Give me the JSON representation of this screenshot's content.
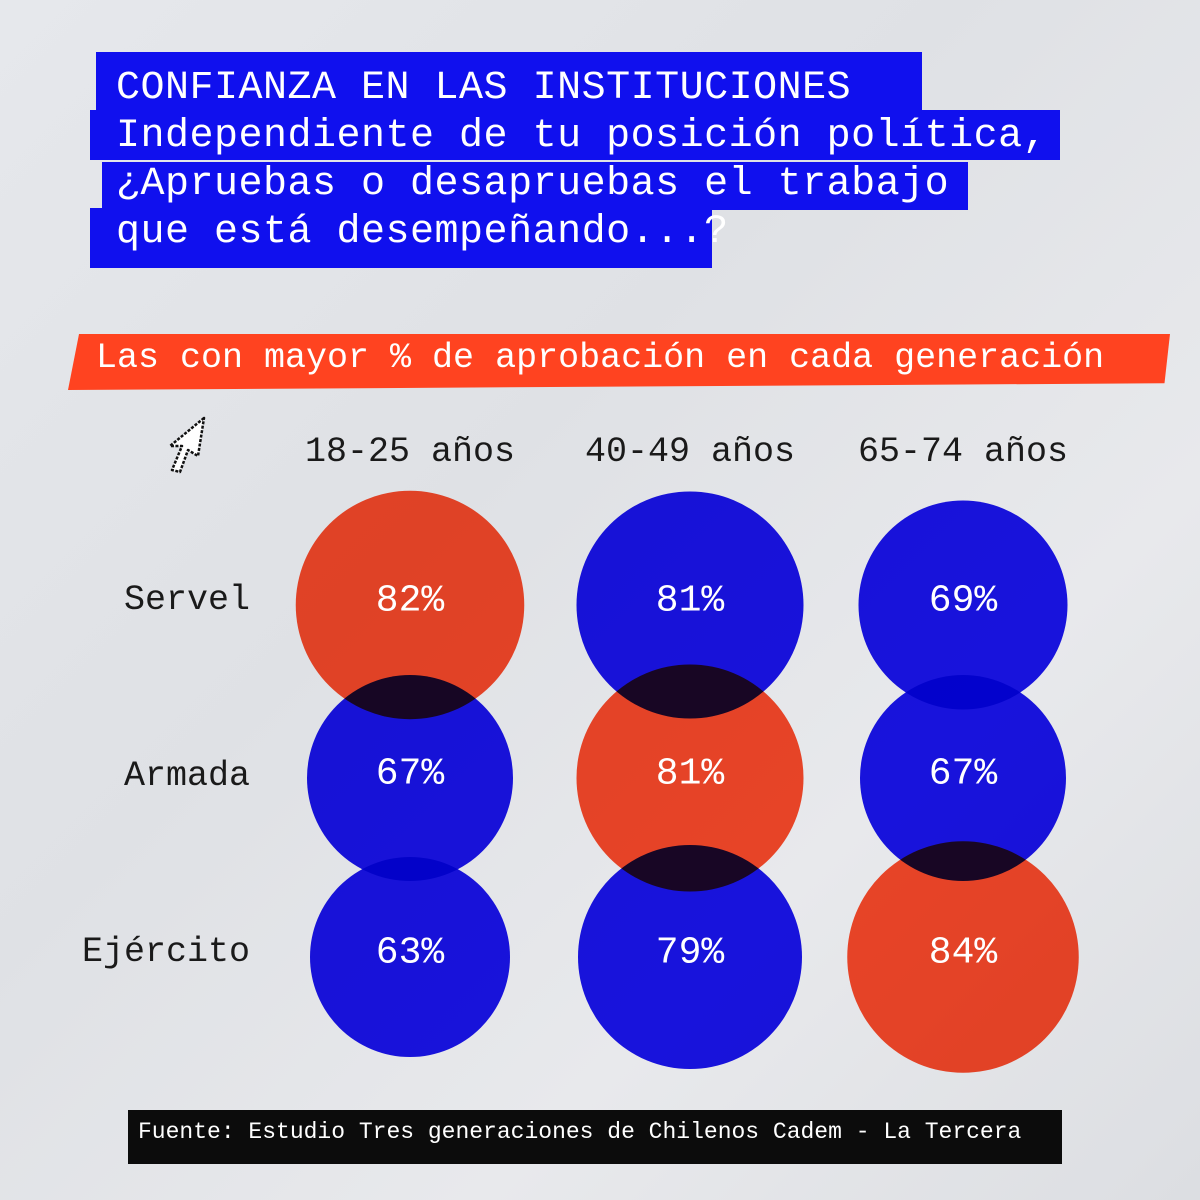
{
  "title": {
    "line1": "CONFIANZA EN LAS INSTITUCIONES",
    "line2": "Independiente de tu posición política,",
    "line3": "¿Apruebas o desapruebas el trabajo",
    "line4": "que está desempeñando...?"
  },
  "subtitle": "Las con mayor % de aprobación en cada generación",
  "icons": {
    "cursor": "pointer-arrow-icon"
  },
  "colors": {
    "blue": "#1a14ee",
    "orange": "#ff4a2a",
    "highlight_rule": "highest value in each generation shown in orange"
  },
  "chart_data": {
    "type": "scatter",
    "categories": [
      "18-25 años",
      "40-49 años",
      "65-74 años"
    ],
    "rows": [
      "Servel",
      "Armada",
      "Ejército"
    ],
    "series": [
      {
        "name": "Servel",
        "values": [
          82,
          81,
          69
        ]
      },
      {
        "name": "Armada",
        "values": [
          67,
          81,
          67
        ]
      },
      {
        "name": "Ejército",
        "values": [
          63,
          79,
          84
        ]
      }
    ],
    "labels": [
      [
        "82%",
        "81%",
        "69%"
      ],
      [
        "67%",
        "81%",
        "67%"
      ],
      [
        "63%",
        "79%",
        "84%"
      ]
    ],
    "highlight": [
      [
        true,
        false,
        false
      ],
      [
        false,
        true,
        false
      ],
      [
        false,
        false,
        true
      ]
    ],
    "unit": "%"
  },
  "source": "Fuente: Estudio Tres generaciones de Chilenos Cadem - La Tercera"
}
